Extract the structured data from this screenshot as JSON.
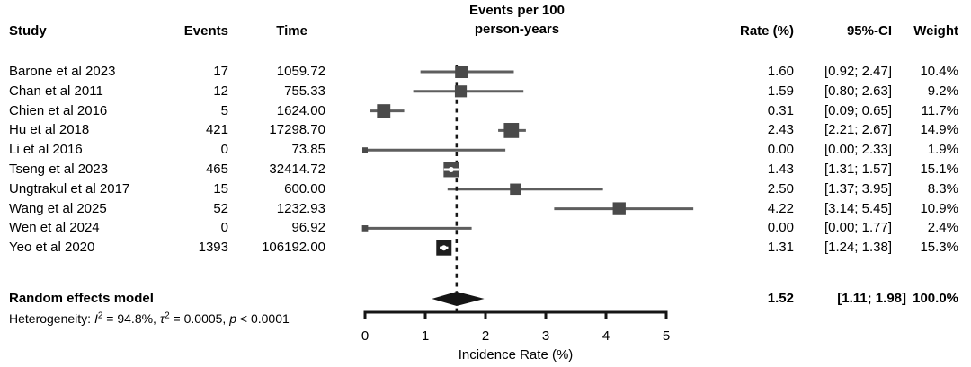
{
  "headers": {
    "study": "Study",
    "events": "Events",
    "time": "Time",
    "effect_line1": "Events per 100",
    "effect_line2": "person-years",
    "rate": "Rate (%)",
    "ci": "95%-CI",
    "weight": "Weight"
  },
  "heterogeneity": {
    "prefix": "Heterogeneity: ",
    "i_symbol": "I",
    "sup": "2",
    "i_rest": " = 94.8%, ",
    "tau_symbol": "τ",
    "tau_rest": " = 0.0005, ",
    "p_symbol": "p",
    "p_rest": " < 0.0001"
  },
  "colors": {
    "square": "#4a4a4a",
    "square_dark": "#1e1e1e",
    "ci_line": "#5e5e5e",
    "axis": "#151515",
    "diamond": "#151515",
    "inside_marker": "#ffffff"
  },
  "chart_data": {
    "type": "forest",
    "title": "Events per 100 person-years",
    "xlabel": "Incidence Rate (%)",
    "xlim": [
      0,
      5
    ],
    "xticks": [
      0,
      1,
      2,
      3,
      4,
      5
    ],
    "reference_value": 1.52,
    "studies": [
      {
        "study": "Barone et al 2023",
        "events": "17",
        "time": "1059.72",
        "rate": 1.6,
        "ci_low": 0.92,
        "ci_high": 2.47,
        "rate_label": "1.60",
        "ci_label": "[0.92; 2.47]",
        "weight": 10.4,
        "weight_label": "10.4%",
        "dark": false
      },
      {
        "study": "Chan et al 2011",
        "events": "12",
        "time": "755.33",
        "rate": 1.59,
        "ci_low": 0.8,
        "ci_high": 2.63,
        "rate_label": "1.59",
        "ci_label": "[0.80; 2.63]",
        "weight": 9.2,
        "weight_label": "9.2%",
        "dark": false
      },
      {
        "study": "Chien et al 2016",
        "events": "5",
        "time": "1624.00",
        "rate": 0.31,
        "ci_low": 0.09,
        "ci_high": 0.65,
        "rate_label": "0.31",
        "ci_label": "[0.09; 0.65]",
        "weight": 11.7,
        "weight_label": "11.7%",
        "dark": false
      },
      {
        "study": "Hu et al 2018",
        "events": "421",
        "time": "17298.70",
        "rate": 2.43,
        "ci_low": 2.21,
        "ci_high": 2.67,
        "rate_label": "2.43",
        "ci_label": "[2.21; 2.67]",
        "weight": 14.9,
        "weight_label": "14.9%",
        "dark": false
      },
      {
        "study": "Li et al 2016",
        "events": "0",
        "time": "73.85",
        "rate": 0.0,
        "ci_low": 0.0,
        "ci_high": 2.33,
        "rate_label": "0.00",
        "ci_label": "[0.00; 2.33]",
        "weight": 1.9,
        "weight_label": "1.9%",
        "dark": false
      },
      {
        "study": "Tseng et al 2023",
        "events": "465",
        "time": "32414.72",
        "rate": 1.43,
        "ci_low": 1.31,
        "ci_high": 1.57,
        "rate_label": "1.43",
        "ci_label": "[1.31; 1.57]",
        "weight": 15.1,
        "weight_label": "15.1%",
        "dark": false
      },
      {
        "study": "Ungtrakul et al 2017",
        "events": "15",
        "time": "600.00",
        "rate": 2.5,
        "ci_low": 1.37,
        "ci_high": 3.95,
        "rate_label": "2.50",
        "ci_label": "[1.37; 3.95]",
        "weight": 8.3,
        "weight_label": "8.3%",
        "dark": false
      },
      {
        "study": "Wang et al 2025",
        "events": "52",
        "time": "1232.93",
        "rate": 4.22,
        "ci_low": 3.14,
        "ci_high": 5.45,
        "rate_label": "4.22",
        "ci_label": "[3.14; 5.45]",
        "weight": 10.9,
        "weight_label": "10.9%",
        "dark": false
      },
      {
        "study": "Wen et al 2024",
        "events": "0",
        "time": "96.92",
        "rate": 0.0,
        "ci_low": 0.0,
        "ci_high": 1.77,
        "rate_label": "0.00",
        "ci_label": "[0.00; 1.77]",
        "weight": 2.4,
        "weight_label": "2.4%",
        "dark": false
      },
      {
        "study": "Yeo et al 2020",
        "events": "1393",
        "time": "106192.00",
        "rate": 1.31,
        "ci_low": 1.24,
        "ci_high": 1.38,
        "rate_label": "1.31",
        "ci_label": "[1.24; 1.38]",
        "weight": 15.3,
        "weight_label": "15.3%",
        "dark": true
      }
    ],
    "pooled": {
      "label": "Random effects model",
      "rate": 1.52,
      "ci_low": 1.11,
      "ci_high": 1.98,
      "rate_label": "1.52",
      "ci_label": "[1.11; 1.98]",
      "weight_label": "100.0%"
    }
  }
}
